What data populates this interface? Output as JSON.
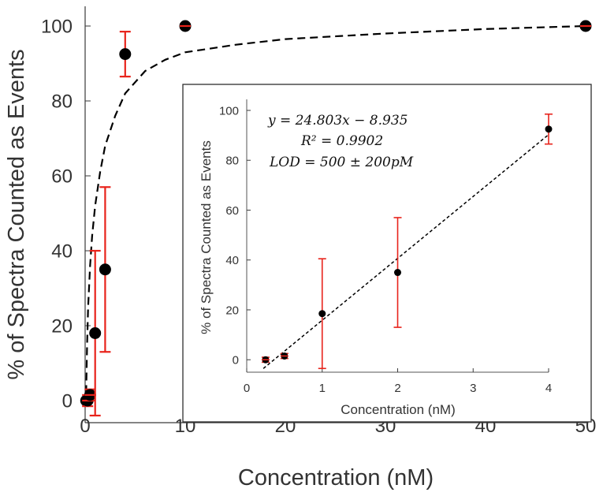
{
  "chart_data": [
    {
      "id": "main",
      "type": "scatter",
      "title": "",
      "xlabel": "Concentration (nM)",
      "ylabel": "% of Spectra Counted as Events",
      "xlim": [
        0,
        50
      ],
      "ylim": [
        0,
        100
      ],
      "xticks": [
        0,
        10,
        20,
        30,
        40,
        50
      ],
      "yticks": [
        0,
        20,
        40,
        60,
        80,
        100
      ],
      "grid": false,
      "series": [
        {
          "name": "data",
          "x": [
            0.1,
            0.25,
            0.5,
            1,
            2,
            4,
            10,
            50
          ],
          "y": [
            0,
            0,
            1.5,
            18,
            35,
            92.5,
            100,
            100
          ],
          "err": [
            0,
            1.5,
            1.5,
            22,
            22,
            6,
            0.5,
            0.5
          ],
          "marker_color": "#000000",
          "error_color": "#e8231b"
        },
        {
          "name": "fit",
          "style": "dashed",
          "color": "#000000",
          "x": [
            0.1,
            0.2,
            0.3,
            0.5,
            0.7,
            1,
            1.5,
            2,
            3,
            4,
            6,
            8,
            10,
            15,
            20,
            30,
            40,
            50
          ],
          "y": [
            2,
            15,
            25,
            36,
            44,
            52,
            61,
            68,
            76,
            82,
            88,
            91,
            93,
            95,
            96.5,
            98,
            99.2,
            100
          ]
        }
      ]
    },
    {
      "id": "inset",
      "type": "scatter",
      "title": "",
      "xlabel": "Concentration (nM)",
      "ylabel": "% of Spectra Counted as Events",
      "xlim": [
        0,
        4
      ],
      "ylim": [
        -5,
        100
      ],
      "xticks": [
        0,
        1,
        2,
        3,
        4
      ],
      "yticks": [
        0,
        20,
        40,
        60,
        80,
        100
      ],
      "grid": false,
      "series": [
        {
          "name": "data",
          "x": [
            0.25,
            0.5,
            1,
            2,
            4
          ],
          "y": [
            0,
            1.5,
            18.5,
            35,
            92.5
          ],
          "err": [
            1,
            1,
            22,
            22,
            6
          ],
          "marker_color": "#000000",
          "error_color": "#e8231b"
        },
        {
          "name": "linear fit",
          "style": "dashed",
          "color": "#000000",
          "x": [
            0.22,
            4
          ],
          "y": [
            -3.5,
            90.3
          ]
        }
      ],
      "annotations": [
        {
          "text": "y = 24.803x − 8.935"
        },
        {
          "text": "R² = 0.9902"
        },
        {
          "text": "LOD = 500 ± 200pM"
        }
      ]
    }
  ]
}
